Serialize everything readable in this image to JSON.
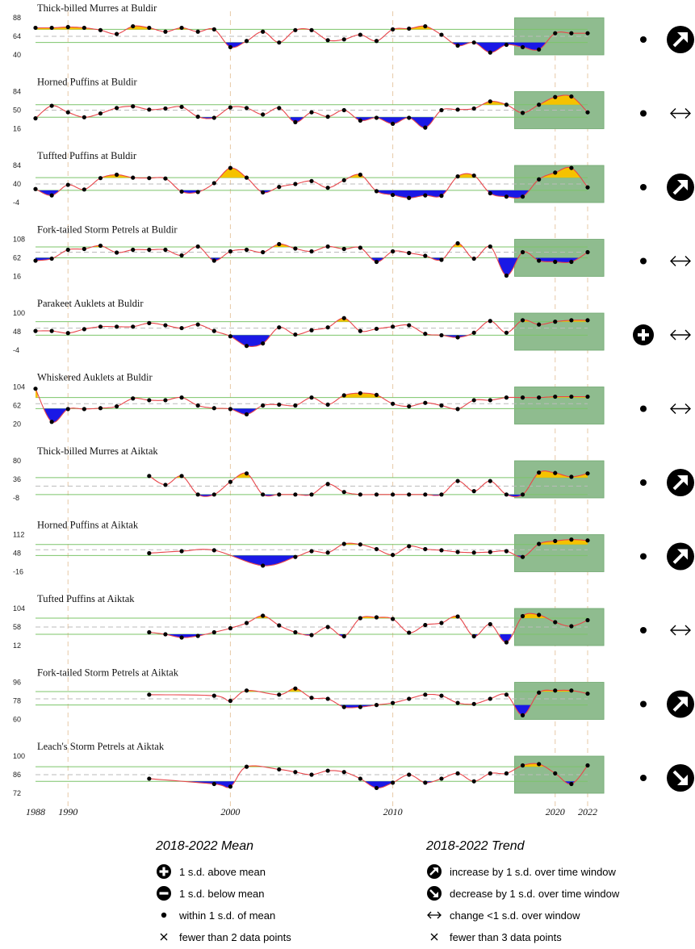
{
  "x_axis": {
    "ticks": [
      "1988",
      "1990",
      "2000",
      "2010",
      "2020",
      "2022"
    ],
    "tick_years": [
      1988,
      1990,
      2000,
      2010,
      2020,
      2022
    ],
    "range": [
      1988,
      2022
    ]
  },
  "window": {
    "start": 2017.5,
    "end": 2023
  },
  "legend": {
    "mean_title": "2018-2022 Mean",
    "trend_title": "2018-2022 Trend",
    "mean_items": [
      {
        "icon": "plus-circle-icon",
        "label": "1 s.d. above mean"
      },
      {
        "icon": "minus-circle-icon",
        "label": "1 s.d. below mean"
      },
      {
        "icon": "dot-icon",
        "label": "within 1 s.d. of mean"
      },
      {
        "icon": "x-icon",
        "label": "fewer than 2 data points"
      }
    ],
    "trend_items": [
      {
        "icon": "increase-arrow-icon",
        "label": "increase by 1 s.d. over time window"
      },
      {
        "icon": "decrease-arrow-icon",
        "label": "decrease by 1 s.d. over time window"
      },
      {
        "icon": "double-arrow-icon",
        "label": "change <1 s.d. over window"
      },
      {
        "icon": "x-icon",
        "label": "fewer than 3 data points"
      }
    ]
  },
  "colors": {
    "line": "#e8464b",
    "above": "#f5c200",
    "below": "#1a18e6",
    "window": "#8fbc8f",
    "band": "#7cc46a"
  },
  "chart_data": [
    {
      "type": "line",
      "title": "Thick-billed Murres at Buldir",
      "yticks": [
        "88",
        "64",
        "40"
      ],
      "ylim": [
        40,
        88
      ],
      "mean": 64,
      "band": [
        56,
        73
      ],
      "mean_status": "within",
      "trend": "increase",
      "x": [
        1988,
        1989,
        1990,
        1991,
        1992,
        1993,
        1994,
        1995,
        1996,
        1997,
        1998,
        1999,
        2000,
        2001,
        2002,
        2003,
        2004,
        2005,
        2006,
        2007,
        2008,
        2009,
        2010,
        2011,
        2012,
        2013,
        2014,
        2015,
        2016,
        2017,
        2018,
        2019,
        2020,
        2021,
        2022
      ],
      "y": [
        75,
        75,
        76,
        75,
        72,
        67,
        77,
        75,
        70,
        75,
        70,
        73,
        50,
        58,
        70,
        56,
        72,
        72,
        59,
        60,
        66,
        58,
        73,
        74,
        77,
        66,
        52,
        56,
        43,
        53,
        50,
        47,
        68,
        68,
        68
      ]
    },
    {
      "type": "line",
      "title": "Horned Puffins at Buldir",
      "yticks": [
        "84",
        "50",
        "16"
      ],
      "ylim": [
        16,
        84
      ],
      "mean": 50,
      "band": [
        37,
        60
      ],
      "mean_status": "within",
      "trend": "flat",
      "x": [
        1988,
        1989,
        1990,
        1991,
        1992,
        1993,
        1994,
        1995,
        1996,
        1997,
        1998,
        1999,
        2000,
        2001,
        2002,
        2003,
        2004,
        2005,
        2006,
        2007,
        2008,
        2009,
        2010,
        2011,
        2012,
        2013,
        2014,
        2015,
        2016,
        2017,
        2018,
        2019,
        2020,
        2021,
        2022
      ],
      "y": [
        35,
        58,
        46,
        37,
        44,
        54,
        57,
        51,
        53,
        56,
        38,
        36,
        55,
        54,
        42,
        54,
        28,
        46,
        38,
        50,
        31,
        36,
        25,
        36,
        18,
        50,
        51,
        53,
        66,
        60,
        45,
        60,
        74,
        75,
        46
      ]
    },
    {
      "type": "line",
      "title": "Tuffted Puffins at Buldir",
      "yticks": [
        "84",
        "40",
        "-4"
      ],
      "ylim": [
        -4,
        84
      ],
      "mean": 40,
      "band": [
        25,
        55
      ],
      "mean_status": "within",
      "trend": "increase",
      "x": [
        1988,
        1989,
        1990,
        1991,
        1992,
        1993,
        1994,
        1995,
        1996,
        1997,
        1998,
        1999,
        2000,
        2001,
        2002,
        2003,
        2004,
        2005,
        2006,
        2007,
        2008,
        2009,
        2010,
        2011,
        2012,
        2013,
        2014,
        2015,
        2016,
        2017,
        2018,
        2019,
        2020,
        2021,
        2022
      ],
      "y": [
        28,
        13,
        38,
        27,
        54,
        62,
        55,
        54,
        53,
        22,
        21,
        42,
        78,
        55,
        20,
        33,
        40,
        47,
        31,
        49,
        62,
        23,
        14,
        7,
        13,
        12,
        58,
        60,
        18,
        10,
        10,
        51,
        67,
        78,
        32
      ]
    },
    {
      "type": "line",
      "title": "Fork-tailed  Storm Petrels at Buldir",
      "yticks": [
        "108",
        "62",
        "16"
      ],
      "ylim": [
        16,
        108
      ],
      "mean": 76,
      "band": [
        62,
        89
      ],
      "mean_status": "within",
      "trend": "flat",
      "x": [
        1988,
        1989,
        1990,
        1991,
        1992,
        1993,
        1994,
        1995,
        1996,
        1997,
        1998,
        1999,
        2000,
        2001,
        2002,
        2003,
        2004,
        2005,
        2006,
        2007,
        2008,
        2009,
        2010,
        2011,
        2012,
        2013,
        2014,
        2015,
        2016,
        2017,
        2018,
        2019,
        2020,
        2021,
        2022
      ],
      "y": [
        55,
        60,
        82,
        84,
        92,
        75,
        82,
        82,
        82,
        68,
        90,
        55,
        78,
        82,
        76,
        96,
        85,
        78,
        90,
        84,
        87,
        52,
        78,
        74,
        67,
        57,
        98,
        60,
        90,
        18,
        76,
        55,
        52,
        52,
        76
      ]
    },
    {
      "type": "line",
      "title": "Parakeet Auklets at Buldir",
      "yticks": [
        "100",
        "48",
        "-4"
      ],
      "ylim": [
        -4,
        100
      ],
      "mean": 58,
      "band": [
        38,
        76
      ],
      "mean_status": "above",
      "trend": "flat",
      "x": [
        1988,
        1989,
        1990,
        1991,
        1992,
        1993,
        1994,
        1995,
        1996,
        1997,
        1998,
        1999,
        2000,
        2001,
        2002,
        2003,
        2004,
        2005,
        2006,
        2007,
        2008,
        2009,
        2010,
        2011,
        2012,
        2013,
        2014,
        2015,
        2016,
        2017,
        2018,
        2019,
        2020,
        2021,
        2022
      ],
      "y": [
        50,
        50,
        44,
        55,
        62,
        62,
        62,
        72,
        66,
        58,
        68,
        50,
        35,
        8,
        15,
        60,
        40,
        52,
        60,
        86,
        50,
        56,
        62,
        66,
        42,
        38,
        32,
        45,
        78,
        45,
        80,
        68,
        76,
        80,
        80
      ]
    },
    {
      "type": "line",
      "title": "Whiskered Auklets at Buldir",
      "yticks": [
        "104",
        "62",
        "20"
      ],
      "ylim": [
        20,
        104
      ],
      "mean": 66,
      "band": [
        55,
        80
      ],
      "mean_status": "within",
      "trend": "flat",
      "x": [
        1988,
        1989,
        1990,
        1991,
        1992,
        1993,
        1994,
        1995,
        1996,
        1997,
        1998,
        1999,
        2000,
        2001,
        2002,
        2003,
        2004,
        2005,
        2006,
        2007,
        2008,
        2009,
        2010,
        2011,
        2012,
        2013,
        2014,
        2015,
        2016,
        2017,
        2018,
        2019,
        2020,
        2021,
        2022
      ],
      "y": [
        100,
        25,
        54,
        54,
        56,
        60,
        78,
        74,
        74,
        80,
        62,
        56,
        54,
        42,
        62,
        64,
        62,
        80,
        64,
        85,
        90,
        86,
        66,
        60,
        68,
        62,
        54,
        74,
        74,
        80,
        80,
        80,
        82,
        82,
        82
      ]
    },
    {
      "type": "line",
      "title": "Thick-billed Murres at Aiktak",
      "yticks": [
        "80",
        "36",
        "-8"
      ],
      "ylim": [
        -8,
        80
      ],
      "mean": 20,
      "band": [
        0,
        40
      ],
      "mean_status": "within",
      "trend": "increase",
      "x": [
        1995,
        1996,
        1997,
        1998,
        1999,
        2000,
        2001,
        2002,
        2003,
        2004,
        2005,
        2006,
        2007,
        2008,
        2009,
        2010,
        2011,
        2012,
        2013,
        2014,
        2015,
        2016,
        2017,
        2018,
        2019,
        2020,
        2021,
        2022
      ],
      "y": [
        44,
        23,
        44,
        0,
        0,
        30,
        50,
        0,
        0,
        0,
        0,
        25,
        6,
        0,
        0,
        0,
        0,
        0,
        0,
        32,
        8,
        32,
        0,
        0,
        52,
        51,
        42,
        50
      ]
    },
    {
      "type": "line",
      "title": "Horned Puffins at Aiktak",
      "yticks": [
        "112",
        "48",
        "-16"
      ],
      "ylim": [
        -16,
        112
      ],
      "mean": 60,
      "band": [
        40,
        78
      ],
      "mean_status": "within",
      "trend": "increase",
      "x": [
        1995,
        1997,
        1999,
        2002,
        2004,
        2005,
        2006,
        2007,
        2008,
        2009,
        2010,
        2011,
        2012,
        2013,
        2014,
        2015,
        2016,
        2017,
        2018,
        2019,
        2020,
        2021,
        2022
      ],
      "y": [
        48,
        55,
        58,
        5,
        35,
        55,
        50,
        80,
        78,
        62,
        42,
        72,
        62,
        58,
        52,
        50,
        52,
        55,
        35,
        80,
        90,
        95,
        92
      ]
    },
    {
      "type": "line",
      "title": "Tufted Puffins at Aiktak",
      "yticks": [
        "104",
        "58",
        "12"
      ],
      "ylim": [
        12,
        104
      ],
      "mean": 58,
      "band": [
        40,
        80
      ],
      "mean_status": "within",
      "trend": "flat",
      "x": [
        1995,
        1996,
        1997,
        1998,
        1999,
        2000,
        2001,
        2002,
        2003,
        2004,
        2005,
        2006,
        2007,
        2008,
        2009,
        2010,
        2011,
        2012,
        2013,
        2014,
        2015,
        2016,
        2017,
        2018,
        2019,
        2020,
        2021,
        2022
      ],
      "y": [
        45,
        40,
        32,
        36,
        45,
        55,
        68,
        86,
        62,
        45,
        38,
        58,
        35,
        80,
        82,
        78,
        44,
        63,
        68,
        84,
        35,
        65,
        20,
        85,
        88,
        70,
        60,
        75
      ]
    },
    {
      "type": "line",
      "title": "Fork-tailed Storm Petrels at Aiktak",
      "yticks": [
        "96",
        "78",
        "60"
      ],
      "ylim": [
        60,
        96
      ],
      "mean": 80,
      "band": [
        74,
        87
      ],
      "mean_status": "within",
      "trend": "increase",
      "x": [
        1995,
        1999,
        2000,
        2001,
        2003,
        2004,
        2005,
        2006,
        2007,
        2008,
        2009,
        2010,
        2011,
        2012,
        2013,
        2014,
        2015,
        2016,
        2017,
        2018,
        2019,
        2020,
        2021,
        2022
      ],
      "y": [
        84,
        83,
        78,
        88,
        84,
        90,
        81,
        80,
        72,
        72,
        74,
        76,
        80,
        84,
        83,
        76,
        75,
        80,
        84,
        64,
        86,
        88,
        88,
        85
      ]
    },
    {
      "type": "line",
      "title": "Leach's Storm Petrels at Aiktak",
      "yticks": [
        "100",
        "86",
        "72"
      ],
      "ylim": [
        72,
        100
      ],
      "mean": 86,
      "band": [
        81,
        92
      ],
      "mean_status": "within",
      "trend": "decrease",
      "x": [
        1995,
        1999,
        2000,
        2001,
        2003,
        2004,
        2005,
        2006,
        2007,
        2008,
        2009,
        2010,
        2011,
        2012,
        2013,
        2014,
        2015,
        2016,
        2017,
        2018,
        2019,
        2020,
        2021,
        2022
      ],
      "y": [
        83,
        79,
        77,
        92,
        90,
        88,
        86,
        89,
        88,
        83,
        76,
        80,
        86,
        80,
        83,
        87,
        81,
        87,
        87,
        93,
        94,
        87,
        79,
        93
      ]
    }
  ]
}
